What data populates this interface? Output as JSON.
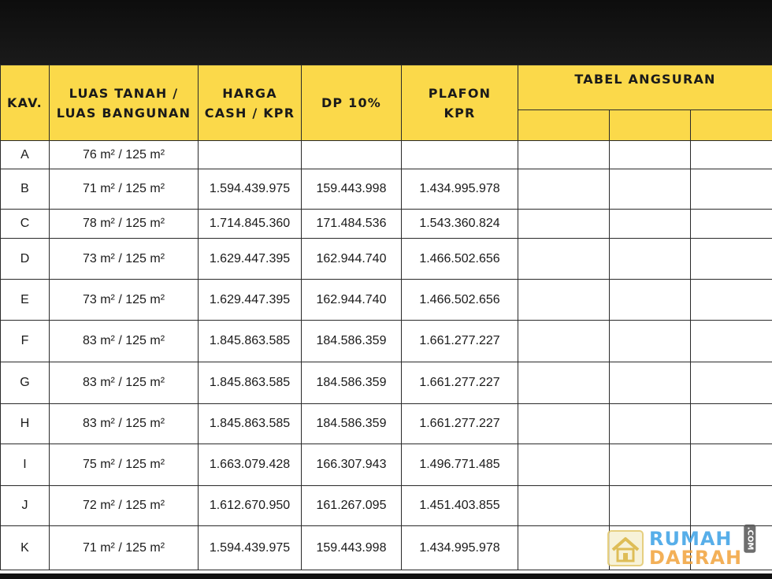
{
  "table": {
    "headers": {
      "kav": "KAV.",
      "luas_line1": "LUAS TANAH /",
      "luas_line2": "LUAS BANGUNAN",
      "harga_line1": "HARGA",
      "harga_line2": "CASH / KPR",
      "dp": "DP 10%",
      "plafon_line1": "PLAFON",
      "plafon_line2": "KPR",
      "angsuran": "TABEL ANGSURAN"
    },
    "rows": [
      {
        "kav": "A",
        "luas": "76 m² / 125 m²",
        "harga": "",
        "dp": "",
        "plafon": ""
      },
      {
        "kav": "B",
        "luas": "71 m² / 125 m²",
        "harga": "1.594.439.975",
        "dp": "159.443.998",
        "plafon": "1.434.995.978"
      },
      {
        "kav": "C",
        "luas": "78 m² / 125 m²",
        "harga": "1.714.845.360",
        "dp": "171.484.536",
        "plafon": "1.543.360.824"
      },
      {
        "kav": "D",
        "luas": "73 m² / 125 m²",
        "harga": "1.629.447.395",
        "dp": "162.944.740",
        "plafon": "1.466.502.656"
      },
      {
        "kav": "E",
        "luas": "73 m² / 125 m²",
        "harga": "1.629.447.395",
        "dp": "162.944.740",
        "plafon": "1.466.502.656"
      },
      {
        "kav": "F",
        "luas": "83 m² / 125 m²",
        "harga": "1.845.863.585",
        "dp": "184.586.359",
        "plafon": "1.661.277.227"
      },
      {
        "kav": "G",
        "luas": "83 m² / 125 m²",
        "harga": "1.845.863.585",
        "dp": "184.586.359",
        "plafon": "1.661.277.227"
      },
      {
        "kav": "H",
        "luas": "83 m² / 125 m²",
        "harga": "1.845.863.585",
        "dp": "184.586.359",
        "plafon": "1.661.277.227"
      },
      {
        "kav": "I",
        "luas": "75 m² / 125 m²",
        "harga": "1.663.079.428",
        "dp": "166.307.943",
        "plafon": "1.496.771.485"
      },
      {
        "kav": "J",
        "luas": "72 m² / 125 m²",
        "harga": "1.612.670.950",
        "dp": "161.267.095",
        "plafon": "1.451.403.855"
      },
      {
        "kav": "K",
        "luas": "71 m² / 125 m²",
        "harga": "1.594.439.975",
        "dp": "159.443.998",
        "plafon": "1.434.995.978"
      }
    ]
  },
  "watermark": {
    "line1": "RUMAH",
    "line2": "DAERAH",
    "suffix": ".COM",
    "icon": "house-icon"
  },
  "colors": {
    "header_bg": "#fbd94a",
    "border": "#2a2a2a",
    "top_band": "#121212",
    "watermark_blue": "#3aa0e6",
    "watermark_orange": "#f2a33c"
  }
}
